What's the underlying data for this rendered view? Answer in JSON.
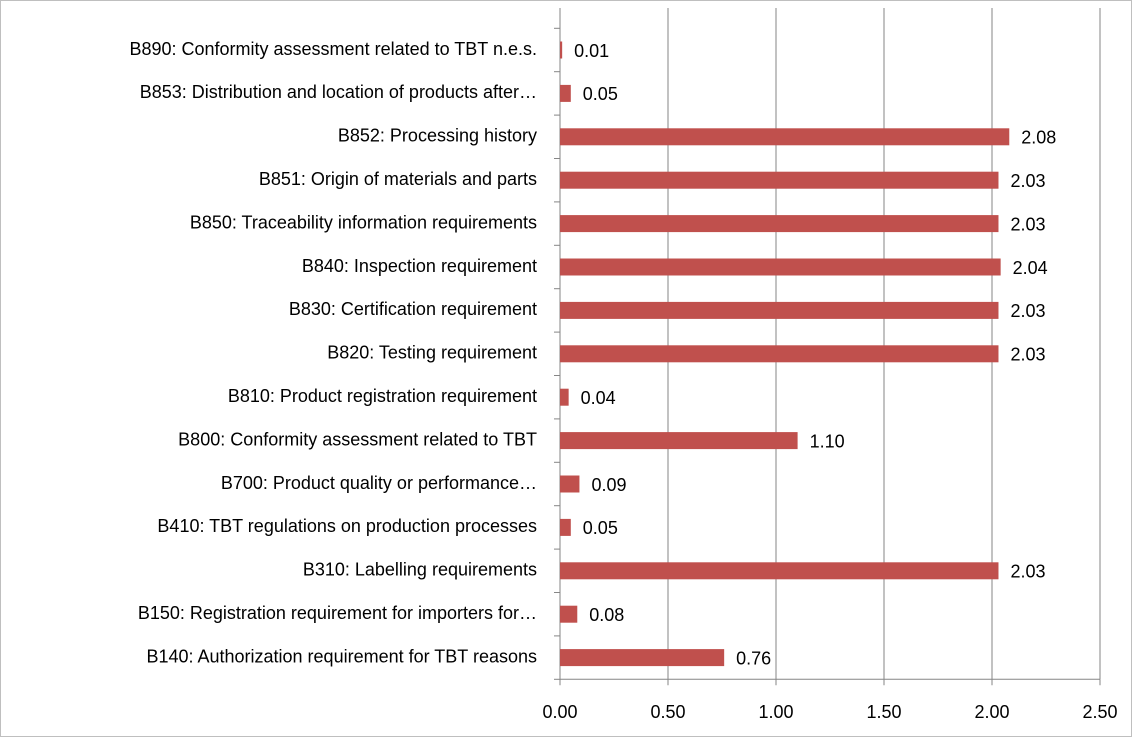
{
  "chart_data": {
    "type": "bar",
    "orientation": "horizontal",
    "categories": [
      "B890: Conformity assessment related to TBT n.e.s.",
      "B853: Distribution and location of products after…",
      "B852: Processing history",
      "B851: Origin of materials and parts",
      "B850: Traceability information requirements",
      "B840: Inspection requirement",
      "B830: Certification requirement",
      "B820: Testing requirement",
      "B810: Product registration requirement",
      "B800: Conformity assessment related to TBT",
      "B700: Product quality or performance…",
      "B410: TBT regulations on production processes",
      "B310: Labelling requirements",
      "B150: Registration requirement for importers for…",
      "B140: Authorization requirement for TBT reasons"
    ],
    "values": [
      0.01,
      0.05,
      2.08,
      2.03,
      2.03,
      2.04,
      2.03,
      2.03,
      0.04,
      1.1,
      0.09,
      0.05,
      2.03,
      0.08,
      0.76
    ],
    "value_labels": [
      "0.01",
      "0.05",
      "2.08",
      "2.03",
      "2.03",
      "2.04",
      "2.03",
      "2.03",
      "0.04",
      "1.10",
      "0.09",
      "0.05",
      "2.03",
      "0.08",
      "0.76"
    ],
    "color": "#c0504d",
    "xlim": [
      0,
      2.5
    ],
    "xticks": [
      {
        "value": 0,
        "label": "0.00"
      },
      {
        "value": 0.5,
        "label": "0.50"
      },
      {
        "value": 1,
        "label": "1.00"
      },
      {
        "value": 1.5,
        "label": "1.50"
      },
      {
        "value": 2,
        "label": "2.00"
      },
      {
        "value": 2.5,
        "label": "2.50"
      }
    ],
    "grid": true
  }
}
